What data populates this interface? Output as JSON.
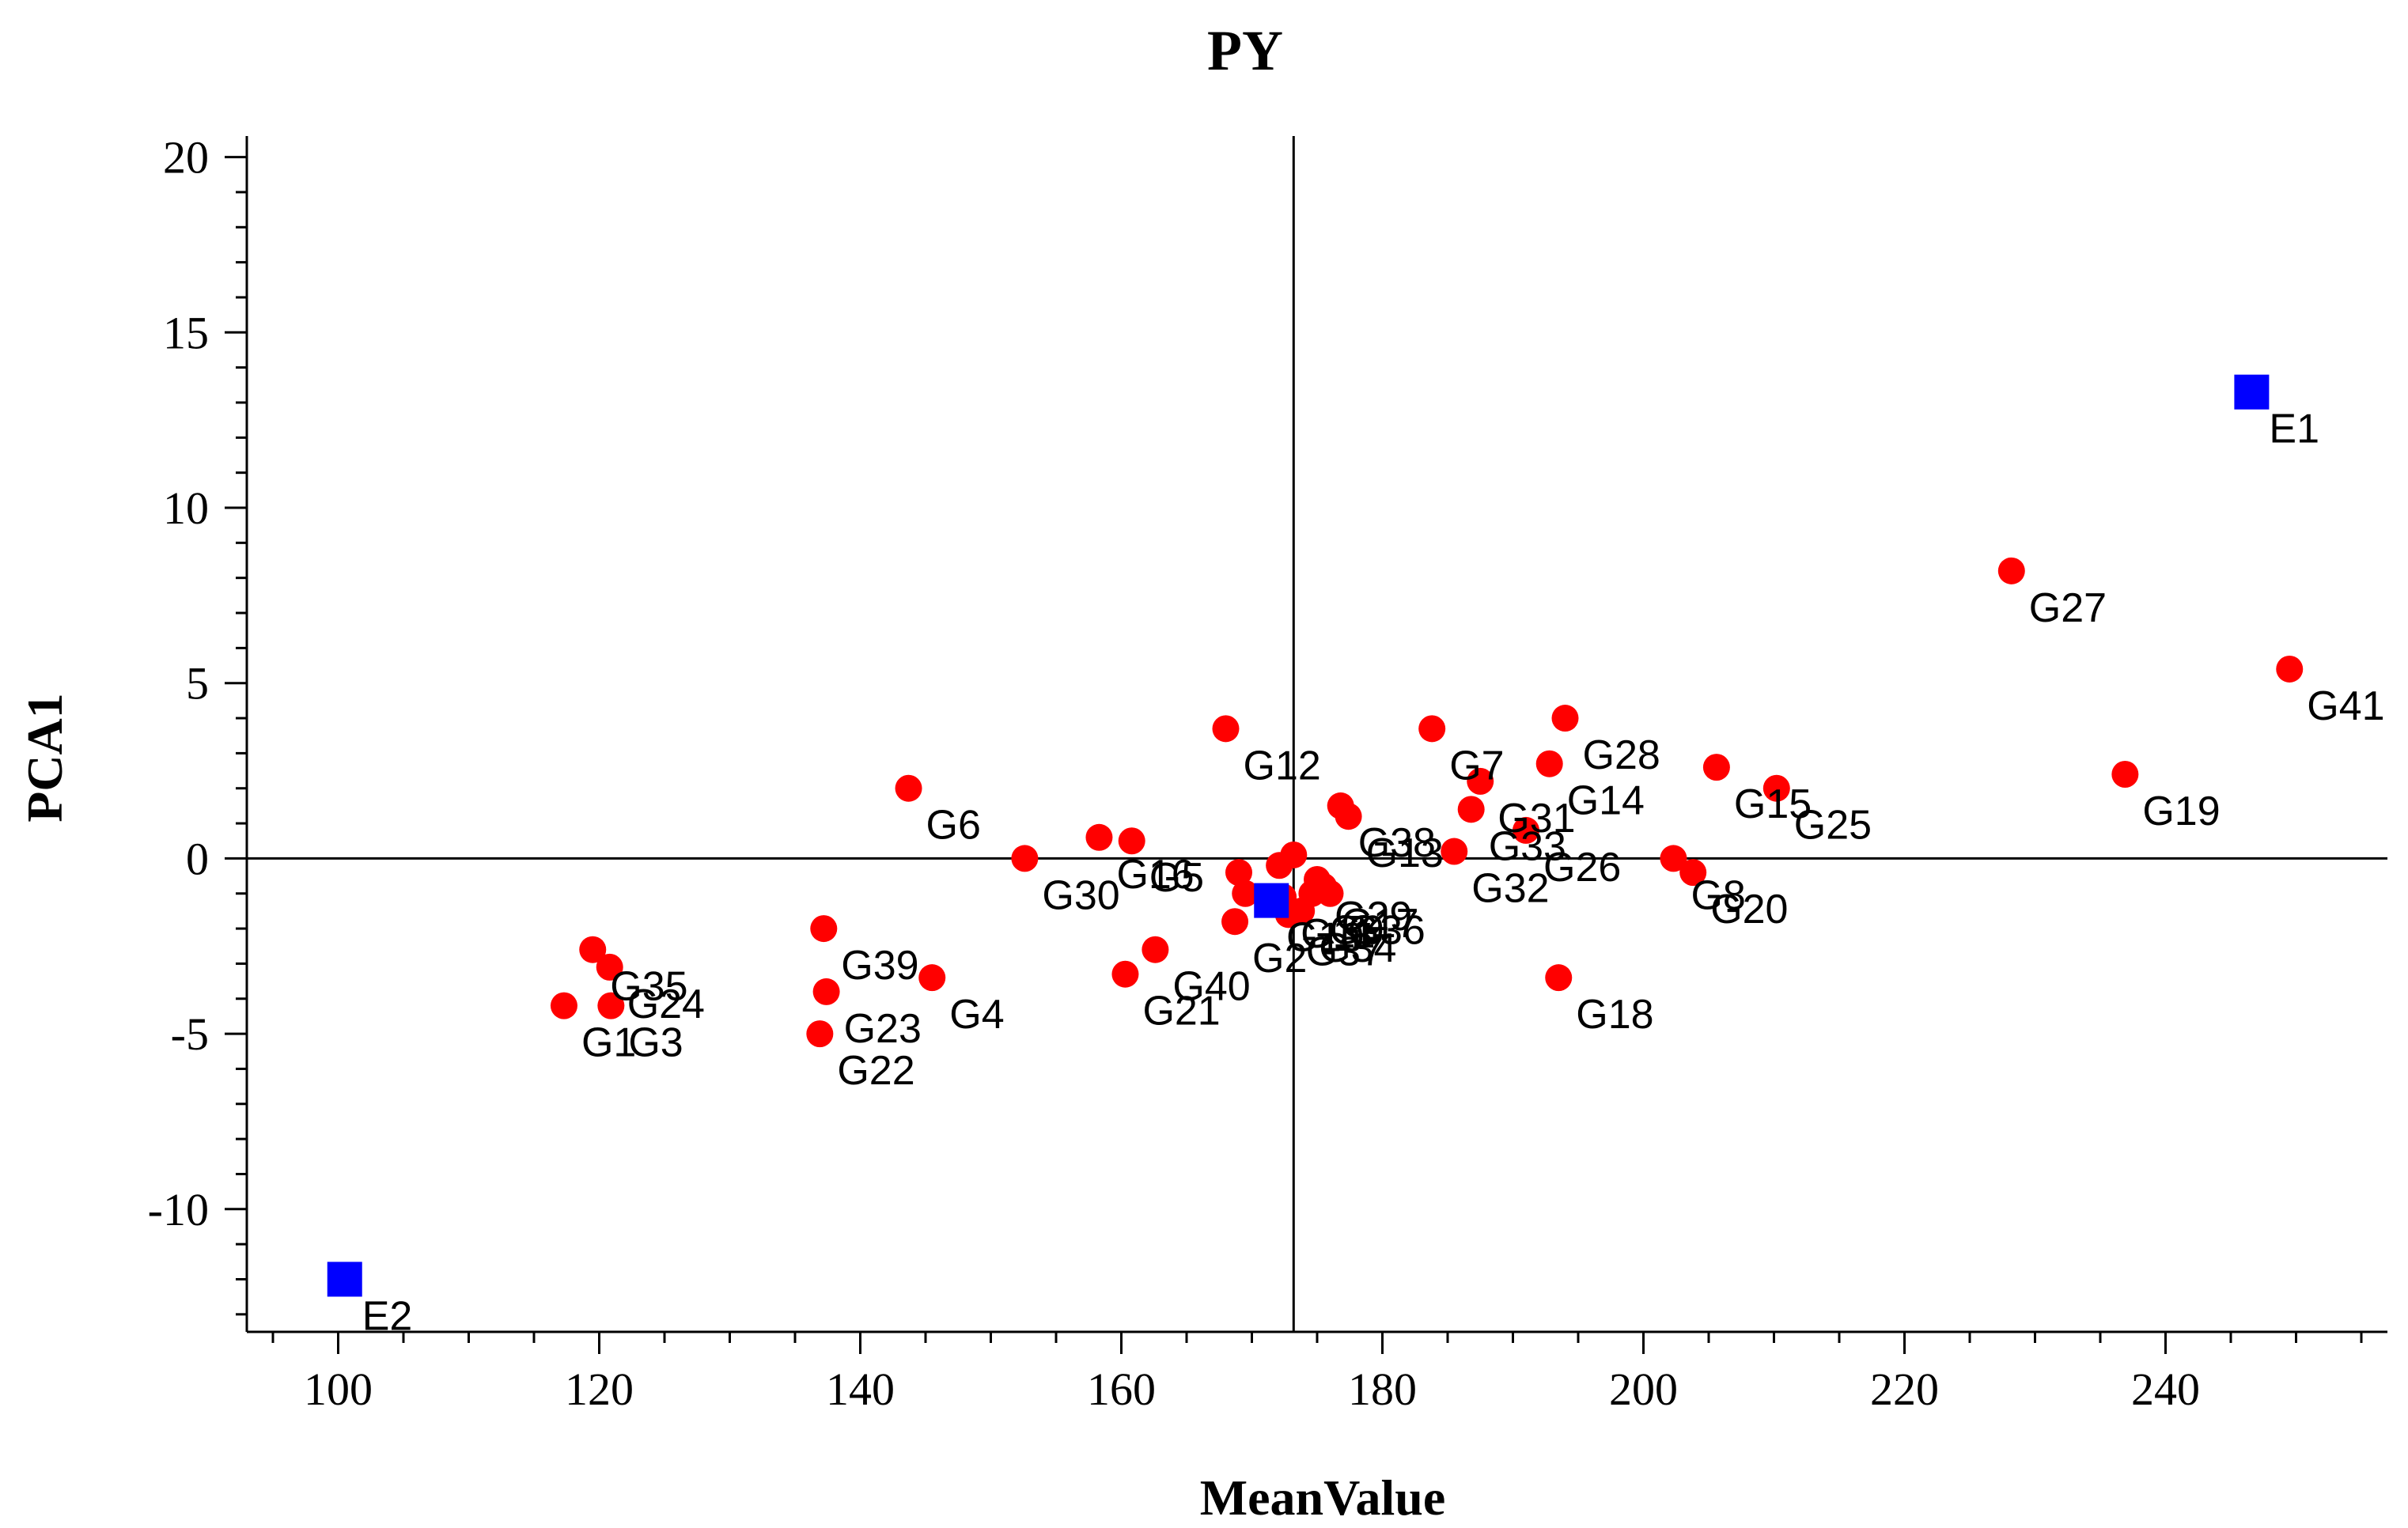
{
  "chart_data": {
    "type": "scatter",
    "title": "PY",
    "xlabel": "MeanValue",
    "ylabel": "PCA1",
    "xlim": [
      93,
      257
    ],
    "ylim": [
      -13.5,
      20.6
    ],
    "xticks": [
      100,
      120,
      140,
      160,
      180,
      200,
      220,
      240
    ],
    "yticks": [
      20,
      15,
      10,
      5,
      0,
      -5,
      -10
    ],
    "reference_lines": {
      "x": 173.2,
      "y": 0
    },
    "grid": false,
    "legend": "none",
    "colors": {
      "genotype": "#ff0000",
      "environment": "#0000ff",
      "axes": "#000000"
    },
    "series": [
      {
        "marker": "circle",
        "color": "#ff0000",
        "points": [
          {
            "label": "G1",
            "x": 117.3,
            "y": -4.2
          },
          {
            "label": "G2",
            "x": 168.7,
            "y": -1.8
          },
          {
            "label": "G3",
            "x": 120.9,
            "y": -4.2
          },
          {
            "label": "G4",
            "x": 145.5,
            "y": -3.4
          },
          {
            "label": "G5",
            "x": 160.8,
            "y": 0.5
          },
          {
            "label": "G6",
            "x": 143.7,
            "y": 2.0
          },
          {
            "label": "G7",
            "x": 183.8,
            "y": 3.7
          },
          {
            "label": "G8",
            "x": 202.3,
            "y": 0.0
          },
          {
            "label": "G9",
            "x": 174.6,
            "y": -1.0
          },
          {
            "label": "G10",
            "x": 171.3,
            "y": -1.2
          },
          {
            "label": "G11",
            "x": 172.4,
            "y": -1.1
          },
          {
            "label": "G12",
            "x": 168.0,
            "y": 3.7
          },
          {
            "label": "G13",
            "x": 177.4,
            "y": 1.2
          },
          {
            "label": "G14",
            "x": 192.8,
            "y": 2.7
          },
          {
            "label": "G15",
            "x": 205.6,
            "y": 2.6
          },
          {
            "label": "G16",
            "x": 158.3,
            "y": 0.6
          },
          {
            "label": "G17",
            "x": 175.5,
            "y": -0.8
          },
          {
            "label": "G18",
            "x": 193.5,
            "y": -3.4
          },
          {
            "label": "G19",
            "x": 236.9,
            "y": 2.4
          },
          {
            "label": "G20",
            "x": 203.8,
            "y": -0.4
          },
          {
            "label": "G21",
            "x": 160.3,
            "y": -3.3
          },
          {
            "label": "G22",
            "x": 136.9,
            "y": -5.0
          },
          {
            "label": "G23",
            "x": 137.4,
            "y": -3.8
          },
          {
            "label": "G24",
            "x": 120.8,
            "y": -3.1
          },
          {
            "label": "G25",
            "x": 210.2,
            "y": 2.0
          },
          {
            "label": "G26",
            "x": 191.0,
            "y": 0.8
          },
          {
            "label": "G27",
            "x": 228.2,
            "y": 8.2
          },
          {
            "label": "G28",
            "x": 194.0,
            "y": 4.0
          },
          {
            "label": "G29",
            "x": 175.0,
            "y": -0.6
          },
          {
            "label": "G30",
            "x": 152.6,
            "y": 0.0
          },
          {
            "label": "G31",
            "x": 187.5,
            "y": 2.2
          },
          {
            "label": "G32",
            "x": 185.5,
            "y": 0.2
          },
          {
            "label": "G33",
            "x": 186.8,
            "y": 1.4
          },
          {
            "label": "G34",
            "x": 173.8,
            "y": -1.5
          },
          {
            "label": "G35",
            "x": 119.5,
            "y": -2.6
          },
          {
            "label": "G36",
            "x": 176.0,
            "y": -1.0
          },
          {
            "label": "G37",
            "x": 172.8,
            "y": -1.6
          },
          {
            "label": "G38",
            "x": 176.8,
            "y": 1.5
          },
          {
            "label": "G39",
            "x": 137.2,
            "y": -2.0
          },
          {
            "label": "G40",
            "x": 162.6,
            "y": -2.6
          },
          {
            "label": "G41",
            "x": 249.5,
            "y": 5.4
          },
          {
            "label": "",
            "x": 169.0,
            "y": -0.4
          },
          {
            "label": "",
            "x": 169.5,
            "y": -1.0
          },
          {
            "label": "",
            "x": 172.1,
            "y": -0.2
          },
          {
            "label": "",
            "x": 173.2,
            "y": 0.1
          }
        ]
      },
      {
        "marker": "square",
        "color": "#0000ff",
        "points": [
          {
            "label": "E1",
            "x": 246.6,
            "y": 13.3
          },
          {
            "label": "E2",
            "x": 100.5,
            "y": -12.0
          },
          {
            "label": "",
            "x": 171.5,
            "y": -1.2
          }
        ]
      }
    ]
  }
}
